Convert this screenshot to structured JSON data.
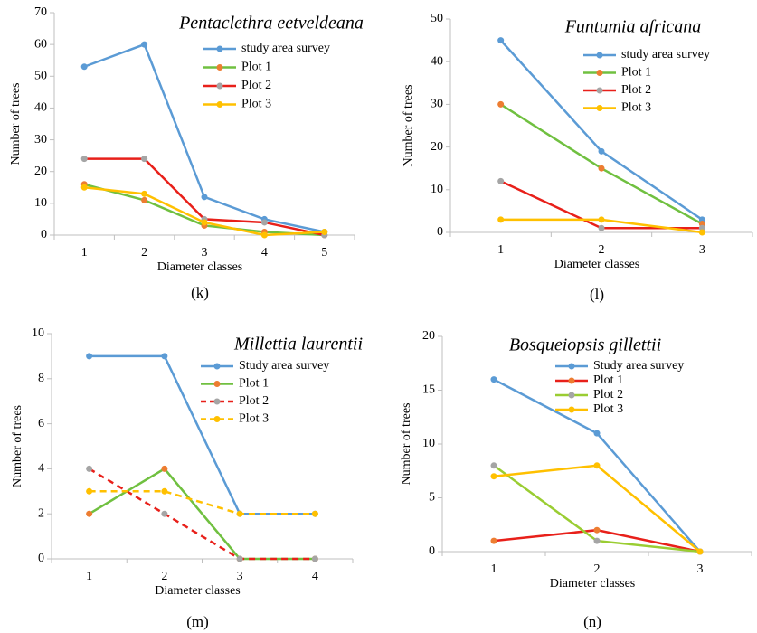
{
  "chart_data": [
    {
      "type": "line",
      "title": "Pentaclethra eetveldeana",
      "panel_label": "(k)",
      "x_label": "Diameter classes",
      "y_label": "Number of trees",
      "categories": [
        1,
        2,
        3,
        4,
        5
      ],
      "ylim": [
        0,
        70
      ],
      "yticks": [
        0,
        10,
        20,
        30,
        40,
        50,
        60,
        70
      ],
      "grid": false,
      "legend": "upper right",
      "series": [
        {
          "name": "study area survey",
          "color": "#5b9bd5",
          "marker_color": "#5b9bd5",
          "dashed": false,
          "values": [
            53,
            60,
            12,
            5,
            1
          ]
        },
        {
          "name": "Plot 1",
          "color": "#70c040",
          "marker_color": "#ed7d31",
          "dashed": false,
          "values": [
            16,
            11,
            3,
            1,
            0
          ]
        },
        {
          "name": "Plot 2",
          "color": "#e8201a",
          "marker_color": "#a5a5a5",
          "dashed": false,
          "values": [
            24,
            24,
            5,
            4,
            0
          ]
        },
        {
          "name": "Plot 3",
          "color": "#ffc000",
          "marker_color": "#ffc000",
          "dashed": false,
          "values": [
            15,
            13,
            4,
            0,
            1
          ]
        }
      ]
    },
    {
      "type": "line",
      "title": "Funtumia africana",
      "panel_label": "(l)",
      "x_label": "Diameter classes",
      "y_label": "Number of trees",
      "categories": [
        1,
        2,
        3
      ],
      "ylim": [
        0,
        50
      ],
      "yticks": [
        0,
        10,
        20,
        30,
        40,
        50
      ],
      "grid": false,
      "legend": "upper right",
      "series": [
        {
          "name": "study area survey",
          "color": "#5b9bd5",
          "marker_color": "#5b9bd5",
          "dashed": false,
          "values": [
            45,
            19,
            3
          ]
        },
        {
          "name": "Plot 1",
          "color": "#70c040",
          "marker_color": "#ed7d31",
          "dashed": false,
          "values": [
            30,
            15,
            2
          ]
        },
        {
          "name": "Plot 2",
          "color": "#e8201a",
          "marker_color": "#a5a5a5",
          "dashed": false,
          "values": [
            12,
            1,
            1
          ]
        },
        {
          "name": "Plot 3",
          "color": "#ffc000",
          "marker_color": "#ffc000",
          "dashed": false,
          "values": [
            3,
            3,
            0
          ]
        }
      ]
    },
    {
      "type": "line",
      "title": "Millettia laurentii",
      "panel_label": "(m)",
      "x_label": "Diameter classes",
      "y_label": "Number of trees",
      "categories": [
        1,
        2,
        3,
        4
      ],
      "ylim": [
        0,
        10
      ],
      "yticks": [
        0,
        2,
        4,
        6,
        8,
        10
      ],
      "grid": false,
      "legend": "upper right",
      "series": [
        {
          "name": "Study area survey",
          "color": "#5b9bd5",
          "marker_color": "#5b9bd5",
          "dashed": false,
          "values": [
            9,
            9,
            2,
            2
          ]
        },
        {
          "name": "Plot 1",
          "color": "#70c040",
          "marker_color": "#ed7d31",
          "dashed": false,
          "values": [
            2,
            4,
            0,
            0
          ]
        },
        {
          "name": "Plot 2",
          "color": "#e8201a",
          "marker_color": "#a5a5a5",
          "dashed": true,
          "values": [
            4,
            2,
            0,
            0
          ]
        },
        {
          "name": "Plot 3",
          "color": "#ffc000",
          "marker_color": "#ffc000",
          "dashed": true,
          "values": [
            3,
            3,
            2,
            2
          ]
        }
      ]
    },
    {
      "type": "line",
      "title": "Bosqueiopsis gillettii",
      "panel_label": "(n)",
      "x_label": "Diameter classes",
      "y_label": "Number of trees",
      "categories": [
        1,
        2,
        3
      ],
      "ylim": [
        0,
        20
      ],
      "yticks": [
        0,
        5,
        10,
        15,
        20
      ],
      "grid": false,
      "legend": "upper right",
      "series": [
        {
          "name": "Study area survey",
          "color": "#5b9bd5",
          "marker_color": "#5b9bd5",
          "dashed": false,
          "values": [
            16,
            11,
            0
          ]
        },
        {
          "name": "Plot 1",
          "color": "#e8201a",
          "marker_color": "#ed7d31",
          "dashed": false,
          "values": [
            1,
            2,
            0
          ]
        },
        {
          "name": "Plot 2",
          "color": "#9acd32",
          "marker_color": "#a5a5a5",
          "dashed": false,
          "values": [
            8,
            1,
            0
          ]
        },
        {
          "name": "Plot 3",
          "color": "#ffc000",
          "marker_color": "#ffc000",
          "dashed": false,
          "values": [
            7,
            8,
            0
          ]
        }
      ]
    }
  ]
}
